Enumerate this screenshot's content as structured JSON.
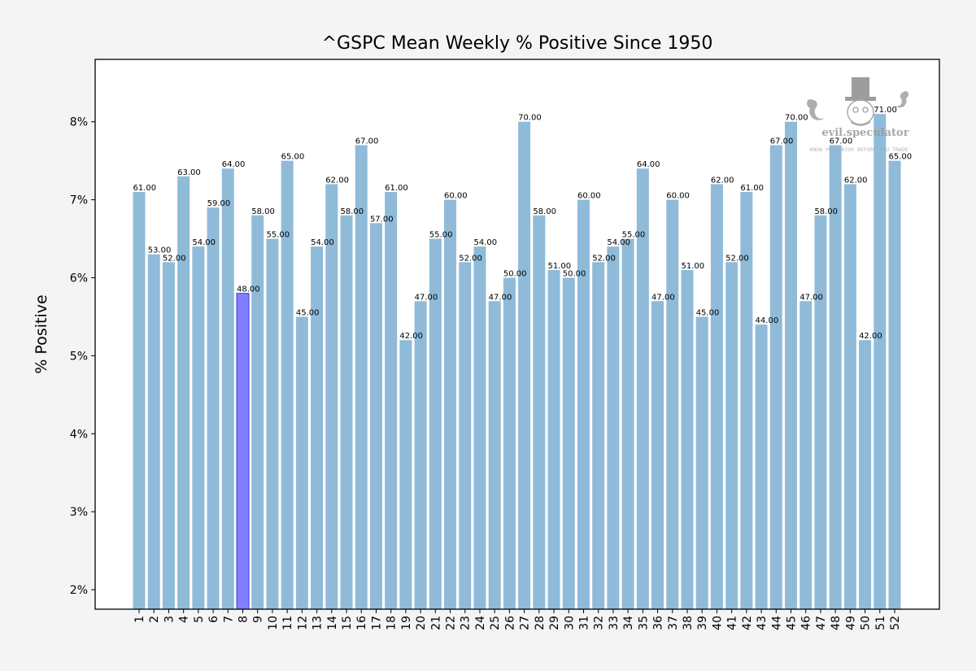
{
  "chart_data": {
    "type": "bar",
    "title": "^GSPC Mean Weekly % Positive Since 1950",
    "xlabel": "",
    "ylabel": "% Positive",
    "ylim": [
      1.75,
      8.8
    ],
    "yticks": [
      2,
      3,
      4,
      5,
      6,
      7,
      8
    ],
    "ytick_suffix": "%",
    "categories": [
      "1",
      "2",
      "3",
      "4",
      "5",
      "6",
      "7",
      "8",
      "9",
      "10",
      "11",
      "12",
      "13",
      "14",
      "15",
      "16",
      "17",
      "18",
      "19",
      "20",
      "21",
      "22",
      "23",
      "24",
      "25",
      "26",
      "27",
      "28",
      "29",
      "30",
      "31",
      "32",
      "33",
      "34",
      "35",
      "36",
      "37",
      "38",
      "39",
      "40",
      "41",
      "42",
      "43",
      "44",
      "45",
      "46",
      "47",
      "48",
      "49",
      "50",
      "51",
      "52"
    ],
    "values": [
      7.1,
      6.3,
      6.2,
      7.3,
      6.4,
      6.9,
      7.4,
      5.8,
      6.8,
      6.5,
      7.5,
      5.5,
      6.4,
      7.2,
      6.8,
      7.7,
      6.7,
      7.1,
      5.2,
      5.7,
      6.5,
      7.0,
      6.2,
      6.4,
      5.7,
      6.0,
      8.0,
      6.8,
      6.1,
      6.0,
      7.0,
      6.2,
      6.4,
      6.5,
      7.4,
      5.7,
      7.0,
      6.1,
      5.5,
      7.2,
      6.2,
      7.1,
      5.4,
      7.7,
      8.0,
      5.7,
      6.8,
      7.7,
      7.2,
      5.2,
      8.1,
      7.5
    ],
    "data_labels": [
      "61.00",
      "53.00",
      "52.00",
      "63.00",
      "54.00",
      "59.00",
      "64.00",
      "48.00",
      "58.00",
      "55.00",
      "65.00",
      "45.00",
      "54.00",
      "62.00",
      "58.00",
      "67.00",
      "57.00",
      "61.00",
      "42.00",
      "47.00",
      "55.00",
      "60.00",
      "52.00",
      "54.00",
      "47.00",
      "50.00",
      "70.00",
      "58.00",
      "51.00",
      "50.00",
      "60.00",
      "52.00",
      "54.00",
      "55.00",
      "64.00",
      "47.00",
      "60.00",
      "51.00",
      "45.00",
      "62.00",
      "52.00",
      "61.00",
      "44.00",
      "67.00",
      "70.00",
      "47.00",
      "58.00",
      "67.00",
      "62.00",
      "42.00",
      "71.00",
      "65.00"
    ],
    "highlight_category": "8",
    "grid": false,
    "colors": {
      "bar": "#8fbbd9",
      "highlight_bar": "#8080ff",
      "highlight_edge": "#3a3acc",
      "highlight_tick": "#0000ff",
      "axes": "#000000",
      "background": "#f4f4f4",
      "plot_background": "#ffffff"
    }
  },
  "watermark": {
    "name": "evil.speculator",
    "tagline": "KNOW YOUR RISK BEFORE YOU TRADE"
  }
}
